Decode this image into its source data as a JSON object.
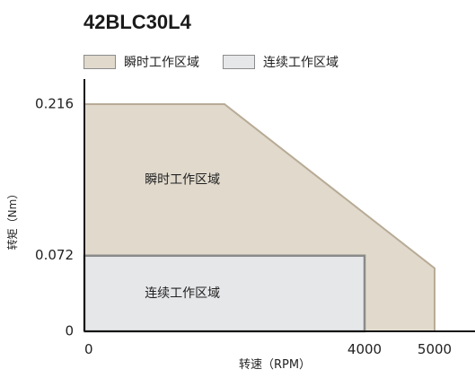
{
  "chart_data": {
    "type": "area",
    "title": "42BLC30L4",
    "xlabel": "转速（RPM）",
    "ylabel": "转矩（Nm）",
    "xlim": [
      0,
      5300
    ],
    "ylim": [
      0,
      0.25
    ],
    "x_ticks": [
      {
        "value": 0,
        "label": "0"
      },
      {
        "value": 4000,
        "label": "4000"
      },
      {
        "value": 5000,
        "label": "5000"
      }
    ],
    "y_ticks": [
      {
        "value": 0,
        "label": "0"
      },
      {
        "value": 0.072,
        "label": "0.072"
      },
      {
        "value": 0.216,
        "label": "0.216"
      }
    ],
    "legend_position": "top-left",
    "series": [
      {
        "name": "瞬时工作区域",
        "color": "#e0d9cc",
        "stroke": "#b8ab96",
        "region_label": "瞬时工作区域",
        "points": [
          [
            0,
            0
          ],
          [
            0,
            0.216
          ],
          [
            2000,
            0.216
          ],
          [
            5000,
            0.06
          ],
          [
            5000,
            0
          ]
        ]
      },
      {
        "name": "连续工作区域",
        "color": "#e6e7e9",
        "stroke": "#8a8a8a",
        "region_label": "连续工作区域",
        "points": [
          [
            0,
            0
          ],
          [
            0,
            0.072
          ],
          [
            4000,
            0.072
          ],
          [
            4000,
            0
          ]
        ]
      }
    ]
  }
}
